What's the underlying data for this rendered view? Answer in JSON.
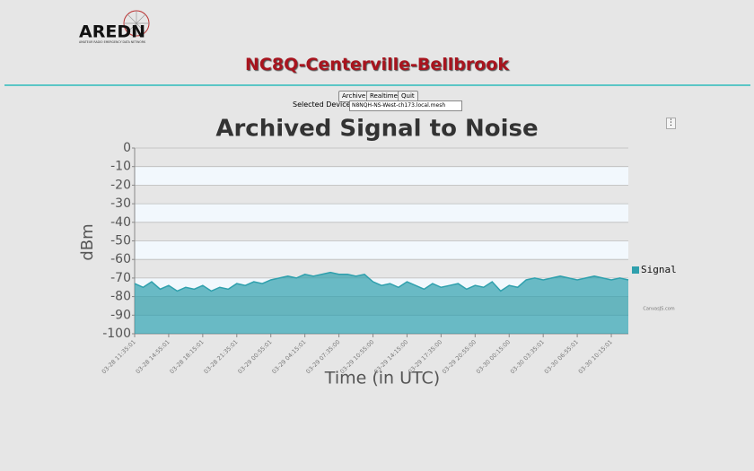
{
  "logo": {
    "title": "AREDN",
    "subtitle": "AMATEUR RADIO EMERGENCY DATA NETWORK"
  },
  "header": {
    "title": "NC8Q-Centerville-Bellbrook"
  },
  "controls": {
    "buttons": [
      "Archive",
      "Realtime",
      "Quit"
    ],
    "device_label": "Selected Device:",
    "device": "N8NQH-NS-West-ch173.local.mesh"
  },
  "chart_data": {
    "type": "area",
    "title": "Archived Signal to Noise",
    "y_label": "dBm",
    "x_label": "Time (in UTC)",
    "credit": "CanvasJS.com",
    "categories": [
      "03-28 11:35:01",
      null,
      null,
      null,
      "03-28 14:55:01",
      null,
      null,
      null,
      "03-28 18:15:01",
      null,
      null,
      null,
      "03-28 21:35:01",
      null,
      null,
      null,
      "03-29 00:55:01",
      null,
      null,
      null,
      "03-29 04:15:01",
      null,
      null,
      null,
      "03-29 07:35:00",
      null,
      null,
      null,
      "03-29 10:55:00",
      null,
      null,
      null,
      "03-29 14:15:00",
      null,
      null,
      null,
      "03-29 17:35:00",
      null,
      null,
      null,
      "03-29 20:55:00",
      null,
      null,
      null,
      "03-30 00:15:00",
      null,
      null,
      null,
      "03-30 03:35:01",
      null,
      null,
      null,
      "03-30 06:55:01",
      null,
      null,
      null,
      "03-30 10:15:01",
      null,
      null
    ],
    "series": [
      {
        "name": "Signal",
        "color": "#2fa0ad",
        "values": [
          -73,
          -75,
          -72,
          -76,
          -74,
          -77,
          -75,
          -76,
          -74,
          -77,
          -75,
          -76,
          -73,
          -74,
          -72,
          -73,
          -71,
          -70,
          -69,
          -70,
          -68,
          -69,
          -68,
          -67,
          -68,
          -68,
          -69,
          -68,
          -72,
          -74,
          -73,
          -75,
          -72,
          -74,
          -76,
          -73,
          -75,
          -74,
          -73,
          -76,
          -74,
          -75,
          -72,
          -77,
          -74,
          -75,
          -71,
          -70,
          -71,
          -70,
          -69,
          -70,
          -71,
          -70,
          -69,
          -70,
          -71,
          -70,
          -71
        ]
      }
    ],
    "ylim": [
      -100,
      0
    ],
    "yticks": [
      0,
      -10,
      -20,
      -30,
      -40,
      -50,
      -60,
      -70,
      -80,
      -90,
      -100
    ],
    "grid": true,
    "legend": "right"
  }
}
